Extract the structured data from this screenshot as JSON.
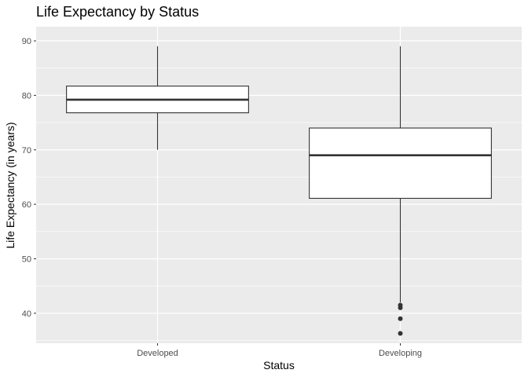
{
  "chart_data": {
    "type": "boxplot",
    "title": "Life Expectancy by Status",
    "xlabel": "Status",
    "ylabel": "Life Expectancy (in years)",
    "categories": [
      "Developed",
      "Developing"
    ],
    "ylim": [
      34.5,
      92.6
    ],
    "yticks": [
      40,
      50,
      60,
      70,
      80,
      90
    ],
    "grid": true,
    "boxes": [
      {
        "name": "Developed",
        "min": 70.0,
        "q1": 76.8,
        "median": 79.2,
        "q3": 81.7,
        "max": 89.0,
        "outliers": []
      },
      {
        "name": "Developing",
        "min": 42.0,
        "q1": 61.1,
        "median": 69.0,
        "q3": 74.0,
        "max": 89.0,
        "outliers": [
          41.5,
          41.0,
          39.0,
          36.3
        ]
      }
    ],
    "colors": {
      "panel": "#ebebeb",
      "grid": "#ffffff",
      "box_fill": "#ffffff",
      "box_line": "#333333"
    }
  }
}
